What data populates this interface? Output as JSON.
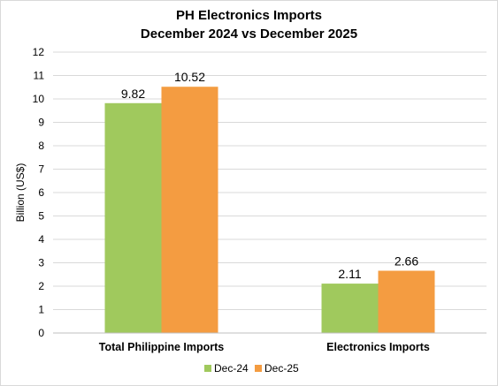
{
  "chart_data": {
    "type": "bar",
    "title": "PH Electronics Imports",
    "subtitle": "December 2024 vs December 2025",
    "xlabel": "",
    "ylabel": "Billion (US$)",
    "ylim": [
      0,
      12
    ],
    "yticks": [
      0,
      1,
      2,
      3,
      4,
      5,
      6,
      7,
      8,
      9,
      10,
      11,
      12
    ],
    "grid": true,
    "legend_position": "bottom",
    "categories": [
      "Total Philippine Imports",
      "Electronics Imports"
    ],
    "series": [
      {
        "name": "Dec-24",
        "color": "#a0c95d",
        "values": [
          9.82,
          2.11
        ],
        "labels": [
          "9.82",
          "2.11"
        ]
      },
      {
        "name": "Dec-25",
        "color": "#f49c41",
        "values": [
          10.52,
          2.66
        ],
        "labels": [
          "10.52",
          "2.66"
        ]
      }
    ]
  }
}
